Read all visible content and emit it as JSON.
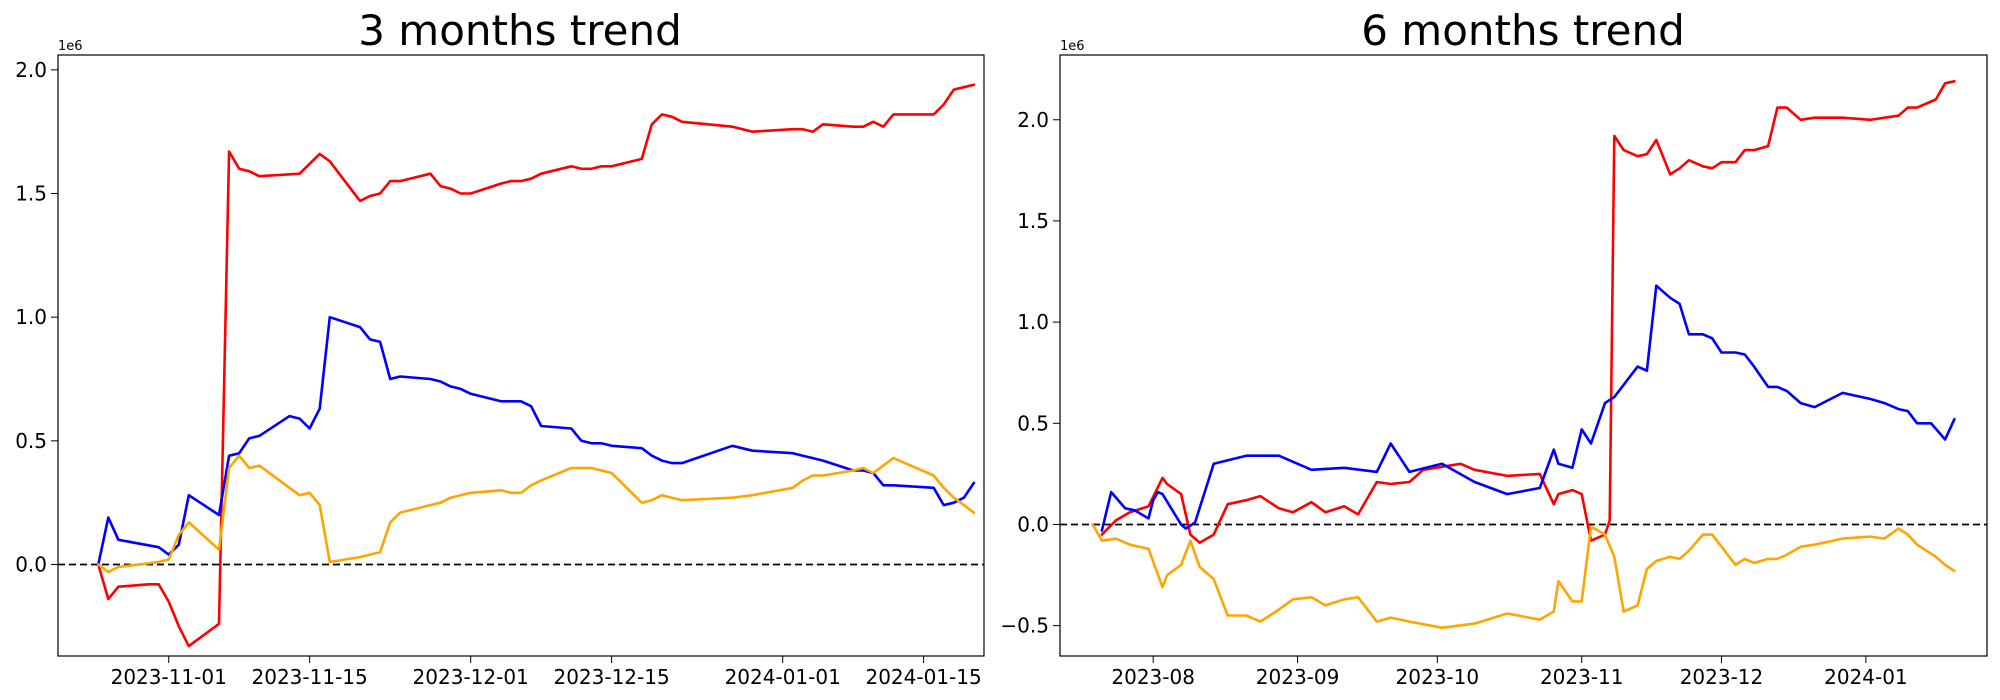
{
  "chart_data": [
    {
      "type": "line",
      "title": "3 months trend",
      "xlabel": "",
      "ylabel": "",
      "y_exponent_label": "1e6",
      "x_axis_type": "date",
      "xlim": [
        "2023-10-21",
        "2024-01-21"
      ],
      "ylim": [
        -0.37,
        2.06
      ],
      "x_ticks": [
        "2023-11-01",
        "2023-11-15",
        "2023-12-01",
        "2023-12-15",
        "2024-01-01",
        "2024-01-15"
      ],
      "y_ticks": [
        0.0,
        0.5,
        1.0,
        1.5,
        2.0
      ],
      "y_tick_labels": [
        "0.0",
        "0.5",
        "1.0",
        "1.5",
        "2.0"
      ],
      "reference_line": {
        "y": 0,
        "style": "dashed",
        "color": "#000000"
      },
      "grid": false,
      "series": [
        {
          "color": "#ff0000",
          "x": [
            "2023-10-25",
            "2023-10-26",
            "2023-10-27",
            "2023-10-30",
            "2023-10-31",
            "2023-11-01",
            "2023-11-02",
            "2023-11-03",
            "2023-11-06",
            "2023-11-07",
            "2023-11-08",
            "2023-11-09",
            "2023-11-10",
            "2023-11-14",
            "2023-11-15",
            "2023-11-16",
            "2023-11-17",
            "2023-11-20",
            "2023-11-21",
            "2023-11-22",
            "2023-11-23",
            "2023-11-24",
            "2023-11-27",
            "2023-11-28",
            "2023-11-29",
            "2023-11-30",
            "2023-12-01",
            "2023-12-04",
            "2023-12-05",
            "2023-12-06",
            "2023-12-07",
            "2023-12-08",
            "2023-12-11",
            "2023-12-12",
            "2023-12-13",
            "2023-12-14",
            "2023-12-15",
            "2023-12-18",
            "2023-12-19",
            "2023-12-20",
            "2023-12-21",
            "2023-12-22",
            "2023-12-27",
            "2023-12-29",
            "2024-01-02",
            "2024-01-03",
            "2024-01-04",
            "2024-01-05",
            "2024-01-08",
            "2024-01-09",
            "2024-01-10",
            "2024-01-11",
            "2024-01-12",
            "2024-01-16",
            "2024-01-17",
            "2024-01-18",
            "2024-01-19",
            "2024-01-20"
          ],
          "values": [
            0.0,
            -0.14,
            -0.09,
            -0.08,
            -0.08,
            -0.15,
            -0.25,
            -0.33,
            -0.24,
            1.67,
            1.6,
            1.59,
            1.57,
            1.58,
            1.62,
            1.66,
            1.63,
            1.47,
            1.49,
            1.5,
            1.55,
            1.55,
            1.58,
            1.53,
            1.52,
            1.5,
            1.5,
            1.54,
            1.55,
            1.55,
            1.56,
            1.58,
            1.61,
            1.6,
            1.6,
            1.61,
            1.61,
            1.64,
            1.78,
            1.82,
            1.81,
            1.79,
            1.77,
            1.75,
            1.76,
            1.76,
            1.75,
            1.78,
            1.77,
            1.77,
            1.79,
            1.77,
            1.82,
            1.82,
            1.86,
            1.92,
            1.93,
            1.94
          ]
        },
        {
          "color": "#0000ff",
          "x": [
            "2023-10-25",
            "2023-10-26",
            "2023-10-27",
            "2023-10-31",
            "2023-11-01",
            "2023-11-02",
            "2023-11-03",
            "2023-11-06",
            "2023-11-07",
            "2023-11-08",
            "2023-11-09",
            "2023-11-10",
            "2023-11-13",
            "2023-11-14",
            "2023-11-15",
            "2023-11-16",
            "2023-11-17",
            "2023-11-20",
            "2023-11-21",
            "2023-11-22",
            "2023-11-23",
            "2023-11-24",
            "2023-11-27",
            "2023-11-28",
            "2023-11-29",
            "2023-11-30",
            "2023-12-01",
            "2023-12-04",
            "2023-12-05",
            "2023-12-06",
            "2023-12-07",
            "2023-12-08",
            "2023-12-11",
            "2023-12-12",
            "2023-12-13",
            "2023-12-14",
            "2023-12-15",
            "2023-12-18",
            "2023-12-19",
            "2023-12-20",
            "2023-12-21",
            "2023-12-22",
            "2023-12-27",
            "2023-12-29",
            "2024-01-02",
            "2024-01-03",
            "2024-01-04",
            "2024-01-05",
            "2024-01-08",
            "2024-01-09",
            "2024-01-10",
            "2024-01-11",
            "2024-01-12",
            "2024-01-16",
            "2024-01-17",
            "2024-01-18",
            "2024-01-19",
            "2024-01-20"
          ],
          "values": [
            0.0,
            0.19,
            0.1,
            0.07,
            0.04,
            0.08,
            0.28,
            0.2,
            0.44,
            0.45,
            0.51,
            0.52,
            0.6,
            0.59,
            0.55,
            0.63,
            1.0,
            0.96,
            0.91,
            0.9,
            0.75,
            0.76,
            0.75,
            0.74,
            0.72,
            0.71,
            0.69,
            0.66,
            0.66,
            0.66,
            0.64,
            0.56,
            0.55,
            0.5,
            0.49,
            0.49,
            0.48,
            0.47,
            0.44,
            0.42,
            0.41,
            0.41,
            0.48,
            0.46,
            0.45,
            0.44,
            0.43,
            0.42,
            0.38,
            0.38,
            0.37,
            0.32,
            0.32,
            0.31,
            0.24,
            0.25,
            0.27,
            0.33
          ]
        },
        {
          "color": "#ffa500",
          "x": [
            "2023-10-25",
            "2023-10-26",
            "2023-10-27",
            "2023-10-31",
            "2023-11-01",
            "2023-11-02",
            "2023-11-03",
            "2023-11-06",
            "2023-11-07",
            "2023-11-08",
            "2023-11-09",
            "2023-11-10",
            "2023-11-14",
            "2023-11-15",
            "2023-11-16",
            "2023-11-17",
            "2023-11-20",
            "2023-11-21",
            "2023-11-22",
            "2023-11-23",
            "2023-11-24",
            "2023-11-27",
            "2023-11-28",
            "2023-11-29",
            "2023-11-30",
            "2023-12-01",
            "2023-12-04",
            "2023-12-05",
            "2023-12-06",
            "2023-12-07",
            "2023-12-08",
            "2023-12-11",
            "2023-12-12",
            "2023-12-13",
            "2023-12-14",
            "2023-12-15",
            "2023-12-18",
            "2023-12-19",
            "2023-12-20",
            "2023-12-21",
            "2023-12-22",
            "2023-12-27",
            "2023-12-29",
            "2024-01-02",
            "2024-01-03",
            "2024-01-04",
            "2024-01-05",
            "2024-01-08",
            "2024-01-09",
            "2024-01-10",
            "2024-01-11",
            "2024-01-12",
            "2024-01-16",
            "2024-01-17",
            "2024-01-18",
            "2024-01-19",
            "2024-01-20"
          ],
          "values": [
            0.0,
            -0.03,
            -0.01,
            0.01,
            0.02,
            0.12,
            0.17,
            0.06,
            0.39,
            0.44,
            0.39,
            0.4,
            0.28,
            0.29,
            0.24,
            0.01,
            0.03,
            0.04,
            0.05,
            0.17,
            0.21,
            0.24,
            0.25,
            0.27,
            0.28,
            0.29,
            0.3,
            0.29,
            0.29,
            0.32,
            0.34,
            0.39,
            0.39,
            0.39,
            0.38,
            0.37,
            0.25,
            0.26,
            0.28,
            0.27,
            0.26,
            0.27,
            0.28,
            0.31,
            0.34,
            0.36,
            0.36,
            0.38,
            0.39,
            0.37,
            0.4,
            0.43,
            0.36,
            0.31,
            0.27,
            0.24,
            0.21
          ]
        }
      ]
    },
    {
      "type": "line",
      "title": "6 months trend",
      "xlabel": "",
      "ylabel": "",
      "y_exponent_label": "1e6",
      "x_axis_type": "date",
      "xlim": [
        "2023-07-12",
        "2024-01-27"
      ],
      "ylim": [
        -0.65,
        2.32
      ],
      "x_ticks": [
        "2023-08",
        "2023-09",
        "2023-10",
        "2023-11",
        "2023-12",
        "2024-01"
      ],
      "x_tick_dates": [
        "2023-08-01",
        "2023-09-01",
        "2023-10-01",
        "2023-11-01",
        "2023-12-01",
        "2024-01-01"
      ],
      "y_ticks": [
        -0.5,
        0.0,
        0.5,
        1.0,
        1.5,
        2.0
      ],
      "y_tick_labels": [
        "−0.5",
        "0.0",
        "0.5",
        "1.0",
        "1.5",
        "2.0"
      ],
      "reference_line": {
        "y": 0,
        "style": "dashed",
        "color": "#000000"
      },
      "grid": false,
      "series": [
        {
          "color": "#ff0000",
          "x": [
            "2023-07-21",
            "2023-07-24",
            "2023-07-27",
            "2023-07-31",
            "2023-08-03",
            "2023-08-04",
            "2023-08-07",
            "2023-08-09",
            "2023-08-11",
            "2023-08-14",
            "2023-08-17",
            "2023-08-21",
            "2023-08-24",
            "2023-08-28",
            "2023-08-31",
            "2023-09-04",
            "2023-09-07",
            "2023-09-11",
            "2023-09-14",
            "2023-09-18",
            "2023-09-21",
            "2023-09-25",
            "2023-09-28",
            "2023-10-06",
            "2023-10-09",
            "2023-10-16",
            "2023-10-23",
            "2023-10-26",
            "2023-10-27",
            "2023-10-30",
            "2023-11-01",
            "2023-11-03",
            "2023-11-06",
            "2023-11-07",
            "2023-11-08",
            "2023-11-10",
            "2023-11-13",
            "2023-11-15",
            "2023-11-17",
            "2023-11-20",
            "2023-11-22",
            "2023-11-24",
            "2023-11-27",
            "2023-11-29",
            "2023-12-01",
            "2023-12-04",
            "2023-12-06",
            "2023-12-08",
            "2023-12-11",
            "2023-12-13",
            "2023-12-15",
            "2023-12-18",
            "2023-12-21",
            "2023-12-27",
            "2024-01-02",
            "2024-01-05",
            "2024-01-08",
            "2024-01-10",
            "2024-01-12",
            "2024-01-16",
            "2024-01-18",
            "2024-01-20"
          ],
          "values": [
            -0.05,
            0.02,
            0.06,
            0.09,
            0.23,
            0.2,
            0.15,
            -0.05,
            -0.09,
            -0.05,
            0.1,
            0.12,
            0.14,
            0.08,
            0.06,
            0.11,
            0.06,
            0.09,
            0.05,
            0.21,
            0.2,
            0.21,
            0.27,
            0.3,
            0.27,
            0.24,
            0.25,
            0.1,
            0.15,
            0.17,
            0.15,
            -0.08,
            -0.05,
            0.02,
            1.92,
            1.85,
            1.82,
            1.83,
            1.9,
            1.73,
            1.76,
            1.8,
            1.77,
            1.76,
            1.79,
            1.79,
            1.85,
            1.85,
            1.87,
            2.06,
            2.06,
            2.0,
            2.01,
            2.01,
            2.0,
            2.01,
            2.02,
            2.06,
            2.06,
            2.1,
            2.18,
            2.19
          ]
        },
        {
          "color": "#0000ff",
          "x": [
            "2023-07-21",
            "2023-07-23",
            "2023-07-26",
            "2023-07-28",
            "2023-07-31",
            "2023-08-01",
            "2023-08-02",
            "2023-08-03",
            "2023-08-07",
            "2023-08-08",
            "2023-08-10",
            "2023-08-14",
            "2023-08-21",
            "2023-08-28",
            "2023-09-04",
            "2023-09-11",
            "2023-09-18",
            "2023-09-21",
            "2023-09-25",
            "2023-10-02",
            "2023-10-09",
            "2023-10-16",
            "2023-10-23",
            "2023-10-26",
            "2023-10-27",
            "2023-10-30",
            "2023-11-01",
            "2023-11-03",
            "2023-11-06",
            "2023-11-08",
            "2023-11-10",
            "2023-11-13",
            "2023-11-15",
            "2023-11-17",
            "2023-11-20",
            "2023-11-22",
            "2023-11-24",
            "2023-11-27",
            "2023-11-29",
            "2023-12-01",
            "2023-12-04",
            "2023-12-06",
            "2023-12-08",
            "2023-12-11",
            "2023-12-13",
            "2023-12-15",
            "2023-12-18",
            "2023-12-21",
            "2023-12-27",
            "2024-01-02",
            "2024-01-05",
            "2024-01-08",
            "2024-01-10",
            "2024-01-12",
            "2024-01-15",
            "2024-01-18",
            "2024-01-20"
          ],
          "values": [
            -0.03,
            0.16,
            0.08,
            0.07,
            0.03,
            0.12,
            0.16,
            0.15,
            0.0,
            -0.02,
            0.01,
            0.3,
            0.34,
            0.34,
            0.27,
            0.28,
            0.26,
            0.4,
            0.26,
            0.3,
            0.21,
            0.15,
            0.18,
            0.37,
            0.3,
            0.28,
            0.47,
            0.4,
            0.6,
            0.63,
            0.69,
            0.78,
            0.76,
            1.18,
            1.12,
            1.09,
            0.94,
            0.94,
            0.92,
            0.85,
            0.85,
            0.84,
            0.78,
            0.68,
            0.68,
            0.66,
            0.6,
            0.58,
            0.65,
            0.62,
            0.6,
            0.57,
            0.56,
            0.5,
            0.5,
            0.42,
            0.52
          ]
        },
        {
          "color": "#ffa500",
          "x": [
            "2023-07-19",
            "2023-07-21",
            "2023-07-24",
            "2023-07-27",
            "2023-07-31",
            "2023-08-03",
            "2023-08-04",
            "2023-08-07",
            "2023-08-09",
            "2023-08-11",
            "2023-08-14",
            "2023-08-17",
            "2023-08-21",
            "2023-08-24",
            "2023-08-28",
            "2023-08-31",
            "2023-09-04",
            "2023-09-07",
            "2023-09-11",
            "2023-09-14",
            "2023-09-18",
            "2023-09-21",
            "2023-09-25",
            "2023-10-02",
            "2023-10-09",
            "2023-10-16",
            "2023-10-23",
            "2023-10-26",
            "2023-10-27",
            "2023-10-30",
            "2023-11-01",
            "2023-11-03",
            "2023-11-06",
            "2023-11-08",
            "2023-11-10",
            "2023-11-13",
            "2023-11-15",
            "2023-11-17",
            "2023-11-20",
            "2023-11-22",
            "2023-11-24",
            "2023-11-27",
            "2023-11-29",
            "2023-12-01",
            "2023-12-04",
            "2023-12-06",
            "2023-12-08",
            "2023-12-11",
            "2023-12-13",
            "2023-12-15",
            "2023-12-18",
            "2023-12-21",
            "2023-12-27",
            "2024-01-02",
            "2024-01-05",
            "2024-01-08",
            "2024-01-10",
            "2024-01-12",
            "2024-01-16",
            "2024-01-18",
            "2024-01-20"
          ],
          "values": [
            0.0,
            -0.08,
            -0.07,
            -0.1,
            -0.12,
            -0.31,
            -0.25,
            -0.2,
            -0.08,
            -0.21,
            -0.27,
            -0.45,
            -0.45,
            -0.48,
            -0.42,
            -0.37,
            -0.36,
            -0.4,
            -0.37,
            -0.36,
            -0.48,
            -0.46,
            -0.48,
            -0.51,
            -0.49,
            -0.44,
            -0.47,
            -0.43,
            -0.28,
            -0.38,
            -0.38,
            -0.01,
            -0.05,
            -0.16,
            -0.43,
            -0.4,
            -0.22,
            -0.18,
            -0.16,
            -0.17,
            -0.13,
            -0.05,
            -0.05,
            -0.11,
            -0.2,
            -0.17,
            -0.19,
            -0.17,
            -0.17,
            -0.15,
            -0.11,
            -0.1,
            -0.07,
            -0.06,
            -0.07,
            -0.02,
            -0.05,
            -0.1,
            -0.16,
            -0.2,
            -0.23
          ]
        }
      ]
    }
  ]
}
